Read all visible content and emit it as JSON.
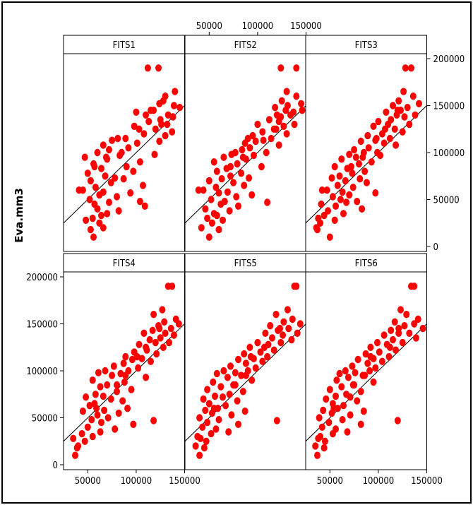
{
  "chart_data": {
    "type": "scatter",
    "ylabel": "Eva.mm3",
    "xlim": [
      25000,
      150000
    ],
    "ylim": [
      0,
      200000
    ],
    "ticks": [
      0,
      50000,
      100000,
      150000,
      200000
    ],
    "x_tick_labels": [
      "50000",
      "100000",
      "150000"
    ],
    "y_tick_labels": [
      "0",
      "50000",
      "100000",
      "150000",
      "200000"
    ],
    "reference_line": "y = x",
    "point_color": "#ff0000",
    "line_color": "#000000",
    "y": [
      190000,
      190000,
      165000,
      160000,
      155000,
      152000,
      150000,
      148000,
      145000,
      143000,
      140000,
      140000,
      138000,
      135000,
      133000,
      130000,
      130000,
      128000,
      125000,
      122000,
      120000,
      118000,
      115000,
      113000,
      112000,
      110000,
      108000,
      105000,
      103000,
      100000,
      100000,
      98000,
      97000,
      95000,
      93000,
      90000,
      88000,
      85000,
      83000,
      80000,
      78000,
      75000,
      73000,
      72000,
      70000,
      68000,
      65000,
      63000,
      60000,
      58000,
      57000,
      55000,
      53000,
      50000,
      48000,
      47000,
      45000,
      43000,
      40000,
      38000,
      35000,
      33000,
      30000,
      28000,
      25000,
      20000,
      18000,
      10000,
      145000,
      125000,
      115000,
      95000,
      85000,
      60000
    ],
    "panels": [
      {
        "label": "FITS1",
        "x": [
          112000,
          123000,
          140000,
          130000,
          128000,
          124000,
          139000,
          145000,
          118000,
          100000,
          133000,
          110000,
          138000,
          125000,
          113000,
          126000,
          132000,
          98000,
          120000,
          137000,
          108000,
          130000,
          89000,
          75000,
          124000,
          101000,
          66000,
          92000,
          72000,
          85000,
          60000,
          119000,
          83000,
          47000,
          70000,
          104000,
          56000,
          90000,
          64000,
          97000,
          50000,
          68000,
          78000,
          87000,
          53000,
          74000,
          107000,
          58000,
          45000,
          66000,
          94000,
          62000,
          80000,
          52000,
          104000,
          72000,
          57000,
          109000,
          60000,
          82000,
          70000,
          64000,
          55000,
          48000,
          62000,
          66000,
          53000,
          56000,
          115000,
          103000,
          81000,
          69000,
          57000,
          41000
        ]
      },
      {
        "label": "FITS2",
        "x": [
          124000,
          140000,
          130000,
          140000,
          125000,
          145000,
          131000,
          118000,
          129000,
          137000,
          120000,
          134000,
          124000,
          112000,
          122000,
          138000,
          100000,
          127000,
          119000,
          105000,
          130000,
          95000,
          114000,
          106000,
          98000,
          87000,
          122000,
          92000,
          84000,
          77000,
          109000,
          73000,
          96000,
          65000,
          88000,
          55000,
          79000,
          104000,
          68000,
          58000,
          83000,
          72000,
          91000,
          63000,
          50000,
          75000,
          86000,
          57000,
          44000,
          69000,
          60000,
          94000,
          78000,
          52000,
          66000,
          110000,
          62000,
          80000,
          46000,
          71000,
          55000,
          58000,
          48000,
          64000,
          53000,
          42000,
          60000,
          50000,
          146000,
          117000,
          90000,
          85000,
          72000,
          39000
        ]
      },
      {
        "label": "FITS3",
        "x": [
          134000,
          128000,
          126000,
          136000,
          121000,
          142000,
          115000,
          130000,
          123000,
          108000,
          138000,
          119000,
          127000,
          113000,
          100000,
          132000,
          110000,
          95000,
          117000,
          125000,
          104000,
          89000,
          112000,
          97000,
          82000,
          106000,
          118000,
          90000,
          75000,
          99000,
          85000,
          70000,
          102000,
          77000,
          62000,
          93000,
          80000,
          55000,
          68000,
          86000,
          73000,
          60000,
          52000,
          81000,
          66000,
          88000,
          58000,
          74000,
          47000,
          63000,
          97000,
          70000,
          53000,
          61000,
          78000,
          67000,
          41000,
          56000,
          83000,
          48000,
          64000,
          44000,
          38000,
          55000,
          40000,
          36000,
          37000,
          50000,
          120000,
          107000,
          98000,
          84000,
          72000,
          42000
        ]
      },
      {
        "label": "FITS4",
        "x": [
          137000,
          133000,
          127000,
          118000,
          141000,
          129000,
          144000,
          123000,
          136000,
          117000,
          130000,
          108000,
          139000,
          125000,
          114000,
          134000,
          120000,
          103000,
          128000,
          111000,
          98000,
          121000,
          89000,
          106000,
          96000,
          115000,
          87000,
          77000,
          102000,
          68000,
          92000,
          61000,
          84000,
          75000,
          110000,
          55000,
          88000,
          70000,
          63000,
          95000,
          80000,
          58000,
          66000,
          48000,
          74000,
          86000,
          57000,
          52000,
          91000,
          67000,
          45000,
          82000,
          60000,
          71000,
          54000,
          118000,
          64000,
          97000,
          50000,
          78000,
          63000,
          44000,
          55000,
          35000,
          47000,
          40000,
          39000,
          37000,
          124000,
          110000,
          101000,
          89000,
          80000,
          59000
        ]
      },
      {
        "label": "FITS5",
        "x": [
          140000,
          138000,
          131000,
          119000,
          136000,
          127000,
          144000,
          113000,
          132000,
          121000,
          141000,
          108000,
          126000,
          115000,
          135000,
          100000,
          124000,
          111000,
          92000,
          117000,
          103000,
          86000,
          110000,
          96000,
          80000,
          105000,
          88000,
          72000,
          98000,
          65000,
          90000,
          77000,
          58000,
          83000,
          69000,
          94000,
          54000,
          75000,
          62000,
          48000,
          85000,
          71000,
          56000,
          64000,
          44000,
          79000,
          50000,
          67000,
          59000,
          46000,
          87000,
          53000,
          73000,
          40000,
          60000,
          120000,
          48000,
          80000,
          43000,
          57000,
          70000,
          52000,
          38000,
          41000,
          47000,
          36000,
          45000,
          40000,
          123000,
          107000,
          93000,
          88000,
          77000,
          55000
        ]
      },
      {
        "label": "FITS6",
        "x": [
          134000,
          137000,
          123000,
          129000,
          141000,
          117000,
          137000,
          127000,
          146000,
          113000,
          132000,
          121000,
          106000,
          139000,
          115000,
          99000,
          125000,
          109000,
          92000,
          118000,
          101000,
          87000,
          111000,
          95000,
          79000,
          104000,
          89000,
          73000,
          97000,
          66000,
          91000,
          76000,
          60000,
          84000,
          69000,
          57000,
          95000,
          74000,
          62000,
          50000,
          82000,
          67000,
          56000,
          71000,
          46000,
          78000,
          53000,
          64000,
          58000,
          43000,
          85000,
          52000,
          71000,
          39000,
          63000,
          120000,
          49000,
          82000,
          42000,
          56000,
          68000,
          53000,
          40000,
          38000,
          45000,
          35000,
          44000,
          37000,
          121000,
          112000,
          92000,
          86000,
          75000,
          54000
        ]
      }
    ]
  }
}
